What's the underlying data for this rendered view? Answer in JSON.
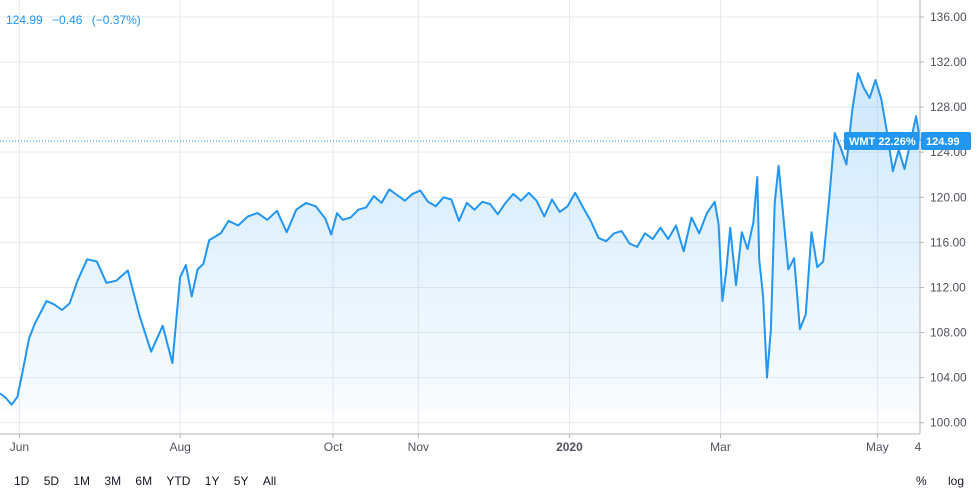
{
  "header": {
    "last": "124.99",
    "change": "−0.46",
    "change_pct": "(−0.37%)"
  },
  "toolbar": {
    "ranges": [
      "1D",
      "5D",
      "1M",
      "3M",
      "6M",
      "YTD",
      "1Y",
      "5Y",
      "All"
    ],
    "percent_label": "%",
    "log_label": "log"
  },
  "colors": {
    "line": "#2196f3",
    "grid": "#e9e9ee",
    "axis_text": "#50535e",
    "label_bg": "#2196f3"
  },
  "chart_data": {
    "type": "area",
    "ylim": [
      99,
      137.5
    ],
    "xlim": [
      0,
      47.5
    ],
    "yticks": [
      100,
      104,
      108,
      112,
      116,
      120,
      124,
      128,
      132,
      136
    ],
    "ytick_labels": [
      "100.00",
      "104.00",
      "108.00",
      "112.00",
      "116.00",
      "120.00",
      "124.00",
      "128.00",
      "132.00",
      "136.00"
    ],
    "xticks": [
      {
        "x": 1,
        "label": "Jun",
        "bold": false
      },
      {
        "x": 9.3,
        "label": "Aug",
        "bold": false
      },
      {
        "x": 17.2,
        "label": "Oct",
        "bold": false
      },
      {
        "x": 21.6,
        "label": "Nov",
        "bold": false
      },
      {
        "x": 29.4,
        "label": "2020",
        "bold": true
      },
      {
        "x": 37.2,
        "label": "Mar",
        "bold": false
      },
      {
        "x": 45.3,
        "label": "May",
        "bold": false
      }
    ],
    "extra_right_label": "4",
    "last_value": 124.99,
    "last_label": "124.99",
    "series_label": "WMT 22.26%",
    "x": [
      0,
      0.3,
      0.6,
      0.9,
      1.2,
      1.5,
      1.8,
      2.1,
      2.4,
      2.8,
      3.2,
      3.6,
      4.0,
      4.5,
      5.0,
      5.5,
      6.0,
      6.6,
      7.2,
      7.8,
      8.4,
      8.9,
      9.3,
      9.6,
      9.9,
      10.2,
      10.5,
      10.8,
      11.1,
      11.4,
      11.8,
      12.3,
      12.8,
      13.3,
      13.8,
      14.3,
      14.8,
      15.3,
      15.8,
      16.3,
      16.8,
      17.1,
      17.4,
      17.7,
      18.1,
      18.5,
      18.9,
      19.3,
      19.7,
      20.1,
      20.5,
      20.9,
      21.3,
      21.7,
      22.1,
      22.5,
      22.9,
      23.3,
      23.7,
      24.1,
      24.5,
      24.9,
      25.3,
      25.7,
      26.1,
      26.5,
      26.9,
      27.3,
      27.7,
      28.1,
      28.5,
      28.9,
      29.3,
      29.7,
      30.1,
      30.5,
      30.9,
      31.3,
      31.7,
      32.1,
      32.5,
      32.9,
      33.3,
      33.7,
      34.1,
      34.5,
      34.9,
      35.3,
      35.7,
      36.1,
      36.5,
      36.9,
      37.1,
      37.3,
      37.5,
      37.7,
      38.0,
      38.3,
      38.6,
      38.9,
      39.1,
      39.2,
      39.4,
      39.6,
      39.8,
      40.0,
      40.2,
      40.4,
      40.7,
      41.0,
      41.3,
      41.6,
      41.9,
      42.2,
      42.5,
      42.8,
      43.1,
      43.4,
      43.7,
      44.0,
      44.3,
      44.6,
      44.9,
      45.2,
      45.5,
      45.8,
      46.1,
      46.4,
      46.7,
      47.0,
      47.3,
      47.5
    ],
    "y": [
      102.6,
      102.2,
      101.6,
      102.3,
      104.8,
      107.5,
      108.8,
      109.8,
      110.8,
      110.5,
      110.0,
      110.6,
      112.6,
      114.5,
      114.3,
      112.4,
      112.6,
      113.5,
      109.5,
      106.3,
      108.6,
      105.3,
      112.9,
      114.0,
      111.2,
      113.6,
      114.1,
      116.2,
      116.5,
      116.8,
      117.9,
      117.5,
      118.3,
      118.6,
      118.0,
      118.8,
      116.9,
      118.9,
      119.5,
      119.2,
      118.1,
      116.7,
      118.6,
      118.0,
      118.2,
      118.9,
      119.1,
      120.1,
      119.5,
      120.7,
      120.2,
      119.7,
      120.3,
      120.6,
      119.6,
      119.2,
      120.0,
      119.8,
      117.9,
      119.5,
      118.9,
      119.6,
      119.4,
      118.5,
      119.5,
      120.3,
      119.7,
      120.4,
      119.7,
      118.3,
      119.8,
      118.7,
      119.2,
      120.4,
      119.1,
      117.9,
      116.4,
      116.1,
      116.8,
      117.0,
      115.9,
      115.6,
      116.8,
      116.3,
      117.3,
      116.3,
      117.5,
      115.2,
      118.2,
      116.8,
      118.6,
      119.6,
      117.6,
      110.8,
      113.5,
      117.3,
      112.2,
      116.9,
      115.4,
      117.8,
      121.8,
      114.5,
      111.2,
      104.0,
      108.3,
      119.5,
      122.8,
      119.1,
      113.6,
      114.6,
      108.3,
      109.6,
      116.9,
      113.8,
      114.3,
      119.7,
      125.7,
      124.4,
      122.9,
      127.7,
      131.0,
      129.7,
      128.8,
      130.4,
      128.7,
      125.7,
      122.3,
      124.2,
      122.5,
      124.8,
      127.2,
      124.99
    ]
  }
}
